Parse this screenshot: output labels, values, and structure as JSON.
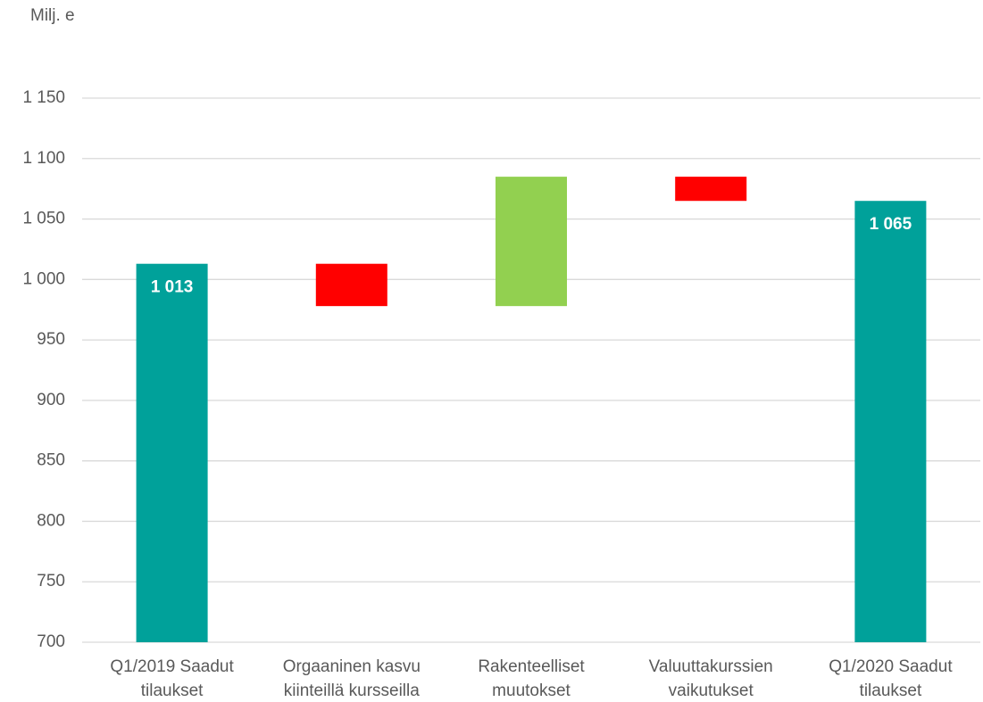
{
  "chart_data": {
    "type": "waterfall",
    "y_label": "Milj. e",
    "categories": [
      [
        "Q1/2019 Saadut",
        "tilaukset"
      ],
      [
        "Orgaaninen kasvu",
        "kiinteillä kursseilla"
      ],
      [
        "Rakenteelliset",
        "muutokset"
      ],
      [
        "Valuuttakurssien",
        "vaikutukset"
      ],
      [
        "Q1/2020 Saadut",
        "tilaukset"
      ]
    ],
    "values": [
      1013,
      -35,
      107,
      -20,
      1065
    ],
    "value_labels": [
      "1 013",
      null,
      null,
      null,
      "1 065"
    ],
    "totals": [
      true,
      false,
      false,
      false,
      true
    ],
    "colors": [
      "#00a19a",
      "#ff0000",
      "#92d050",
      "#ff0000",
      "#00a19a"
    ],
    "ylim": [
      700,
      1150
    ],
    "yticks": [
      700,
      750,
      800,
      850,
      900,
      950,
      {
        "value": 1000,
        "label": "1 000"
      },
      {
        "value": 1050,
        "label": "1 050"
      },
      {
        "value": 1100,
        "label": "1 100"
      },
      {
        "value": 1150,
        "label": "1 150"
      }
    ],
    "grid": true
  }
}
